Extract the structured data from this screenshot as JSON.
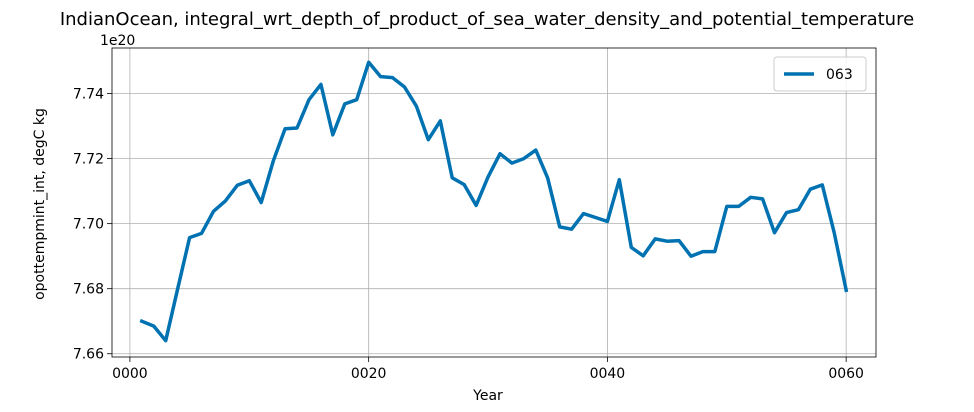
{
  "chart_data": {
    "type": "line",
    "title": "IndianOcean, integral_wrt_depth_of_product_of_sea_water_density_and_potential_temperature",
    "xlabel": "Year",
    "ylabel": "opottempmint_int, degC kg",
    "y_offset_label": "1e20",
    "xlim": [
      -1.5,
      62.5
    ],
    "ylim": [
      7.659,
      7.754
    ],
    "x_ticks": [
      0,
      20,
      40,
      60
    ],
    "x_tick_labels": [
      "0000",
      "0020",
      "0040",
      "0060"
    ],
    "y_ticks": [
      7.66,
      7.68,
      7.7,
      7.72,
      7.74
    ],
    "y_tick_labels": [
      "7.66",
      "7.68",
      "7.70",
      "7.72",
      "7.74"
    ],
    "grid": true,
    "legend_position": "top-right",
    "colors": {
      "series": "#0072B2"
    },
    "series": [
      {
        "name": "063",
        "x": [
          1,
          2,
          3,
          4,
          5,
          6,
          7,
          8,
          9,
          10,
          11,
          12,
          13,
          14,
          15,
          16,
          17,
          18,
          19,
          20,
          21,
          22,
          23,
          24,
          25,
          26,
          27,
          28,
          29,
          30,
          31,
          32,
          33,
          34,
          35,
          36,
          37,
          38,
          39,
          40,
          41,
          42,
          43,
          44,
          45,
          46,
          47,
          48,
          49,
          50,
          51,
          52,
          53,
          54,
          55,
          56,
          57,
          58,
          59,
          60
        ],
        "values": [
          7.67,
          7.6685,
          7.664,
          7.68,
          7.6957,
          7.697,
          7.7038,
          7.707,
          7.7118,
          7.7132,
          7.7065,
          7.7192,
          7.7292,
          7.7294,
          7.7381,
          7.7428,
          7.7273,
          7.7368,
          7.7381,
          7.7496,
          7.7452,
          7.7449,
          7.742,
          7.7361,
          7.7258,
          7.7316,
          7.7141,
          7.712,
          7.7056,
          7.7143,
          7.7215,
          7.7186,
          7.72,
          7.7226,
          7.714,
          7.699,
          7.6983,
          7.7031,
          7.7019,
          7.7007,
          7.7135,
          7.6927,
          7.6901,
          7.6953,
          7.6946,
          7.6948,
          7.69,
          7.6914,
          7.6914,
          7.7053,
          7.7053,
          7.7081,
          7.7076,
          7.6972,
          7.7034,
          7.7043,
          7.7106,
          7.7119,
          7.6972,
          7.6795
        ]
      }
    ]
  }
}
